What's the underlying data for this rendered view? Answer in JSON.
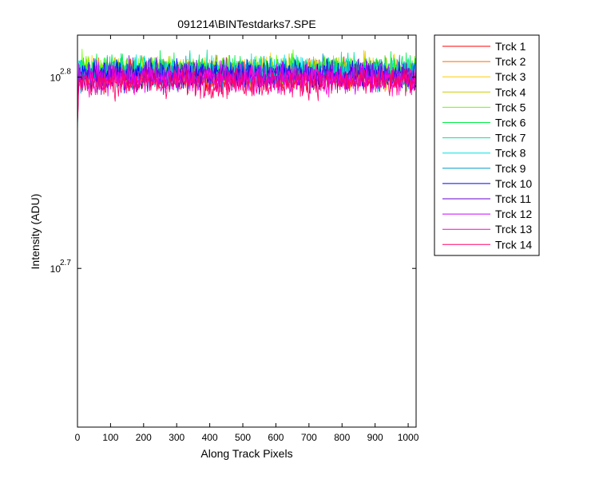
{
  "chart_data": {
    "type": "line",
    "title": "091214\\BINTestdarks7.SPE",
    "xlabel": "Along Track Pixels",
    "ylabel": "Intensity (ADU)",
    "xlim": [
      0,
      1024
    ],
    "ylim_log10": [
      2.617,
      2.822
    ],
    "y_scale": "log",
    "y_tick_base": "10",
    "x_ticks": [
      "0",
      "100",
      "200",
      "300",
      "400",
      "500",
      "600",
      "700",
      "800",
      "900",
      "1000"
    ],
    "x_tick_values": [
      0,
      100,
      200,
      300,
      400,
      500,
      600,
      700,
      800,
      900,
      1000
    ],
    "y_ticks": [
      {
        "value_log10": 2.8,
        "exponent": "2.8"
      },
      {
        "value_log10": 2.7,
        "exponent": "2.7"
      }
    ],
    "grid": false,
    "legend_position": "outside-right",
    "series": [
      {
        "name": "Trck 1",
        "color": "#ff0000",
        "mean_log10": 2.801,
        "spread_log10": 0.0055
      },
      {
        "name": "Trck 2",
        "color": "#ff6600",
        "mean_log10": 2.802,
        "spread_log10": 0.0055
      },
      {
        "name": "Trck 3",
        "color": "#ffcc00",
        "mean_log10": 2.803,
        "spread_log10": 0.0055
      },
      {
        "name": "Trck 4",
        "color": "#cccc00",
        "mean_log10": 2.803,
        "spread_log10": 0.0055
      },
      {
        "name": "Trck 5",
        "color": "#66ff00",
        "mean_log10": 2.804,
        "spread_log10": 0.0055
      },
      {
        "name": "Trck 6",
        "color": "#00ee44",
        "mean_log10": 2.804,
        "spread_log10": 0.0055
      },
      {
        "name": "Trck 7",
        "color": "#00e0a0",
        "mean_log10": 2.803,
        "spread_log10": 0.0055
      },
      {
        "name": "Trck 8",
        "color": "#00e0e0",
        "mean_log10": 2.803,
        "spread_log10": 0.0055
      },
      {
        "name": "Trck 9",
        "color": "#0099cc",
        "mean_log10": 2.802,
        "spread_log10": 0.0055
      },
      {
        "name": "Trck 10",
        "color": "#0000ff",
        "mean_log10": 2.801,
        "spread_log10": 0.0055
      },
      {
        "name": "Trck 11",
        "color": "#6600cc",
        "mean_log10": 2.801,
        "spread_log10": 0.0055
      },
      {
        "name": "Trck 12",
        "color": "#cc00ff",
        "mean_log10": 2.8,
        "spread_log10": 0.0055
      },
      {
        "name": "Trck 13",
        "color": "#ff00cc",
        "mean_log10": 2.799,
        "spread_log10": 0.0055
      },
      {
        "name": "Trck 14",
        "color": "#ff0066",
        "mean_log10": 2.797,
        "spread_log10": 0.0055
      }
    ]
  }
}
